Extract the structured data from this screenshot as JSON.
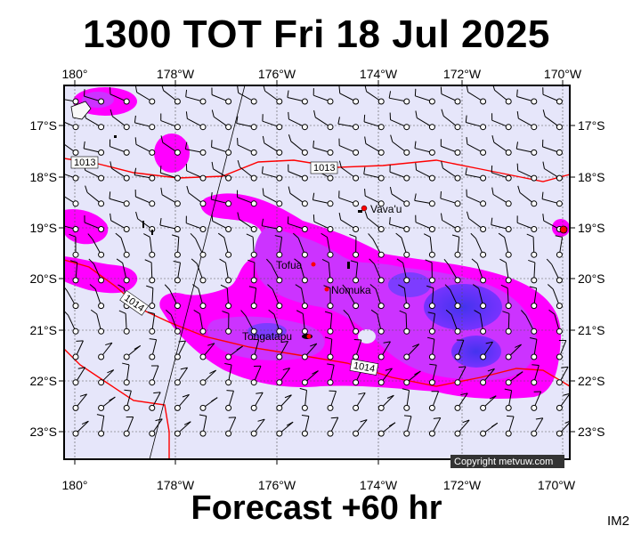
{
  "header": {
    "title": "1300 TOT Fri 18 Jul 2025"
  },
  "footer": {
    "forecast_label": "Forecast +60 hr",
    "image_code": "IM2"
  },
  "map": {
    "longitude_ticks": [
      "180°",
      "178°W",
      "176°W",
      "174°W",
      "172°W",
      "170°W"
    ],
    "latitude_ticks": [
      "17°S",
      "18°S",
      "19°S",
      "20°S",
      "21°S",
      "22°S",
      "23°S"
    ],
    "isobar_labels": [
      "1013",
      "1013",
      "1014",
      "1014"
    ],
    "places": [
      "Vava'u",
      "Tofua",
      "Nomuka",
      "Tongatapu"
    ],
    "copyright": "Copyright metvuw.com",
    "colors": {
      "background": "#e6e6fa",
      "rain_light": "#ff00ff",
      "rain_medium": "#cc33ff",
      "rain_heavy": "#6633ff",
      "isobar": "#ff0000",
      "place_marker": "#ff0000"
    }
  }
}
